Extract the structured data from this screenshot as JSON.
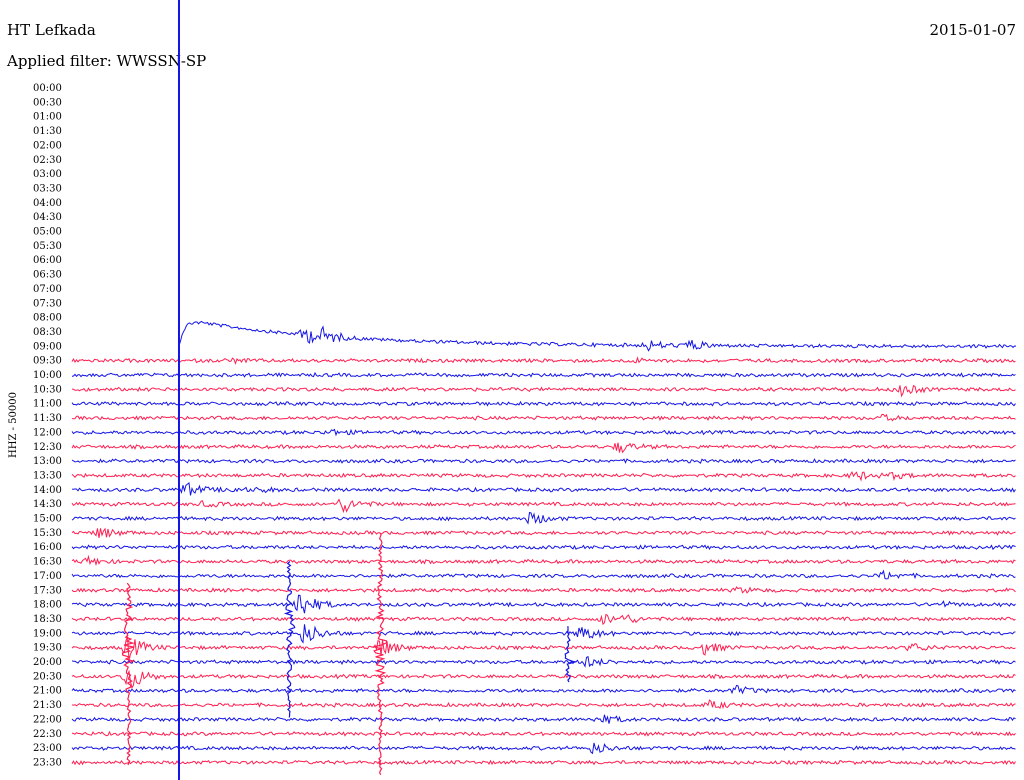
{
  "header": {
    "station": "HT Lefkada",
    "filter": "Applied filter: WWSSN-SP",
    "date": "2015-01-07"
  },
  "chart_data": {
    "type": "line",
    "ylabel": "HHZ - 50000",
    "grid": false,
    "rows": [
      "00:00",
      "00:30",
      "01:00",
      "01:30",
      "02:00",
      "02:30",
      "03:00",
      "03:30",
      "04:00",
      "04:30",
      "05:00",
      "05:30",
      "06:00",
      "06:30",
      "07:00",
      "07:30",
      "08:00",
      "08:30",
      "09:00",
      "09:30",
      "10:00",
      "10:30",
      "11:00",
      "11:30",
      "12:00",
      "12:30",
      "13:00",
      "13:30",
      "14:00",
      "14:30",
      "15:00",
      "15:30",
      "16:00",
      "16:30",
      "17:00",
      "17:30",
      "18:00",
      "18:30",
      "19:00",
      "19:30",
      "20:00",
      "20:30",
      "21:00",
      "21:30",
      "22:00",
      "22:30",
      "23:00",
      "23:30"
    ],
    "data_start_row": 18,
    "colors": {
      "even": "#ff1e50",
      "odd": "#1414e6"
    },
    "x_range_minutes": [
      0,
      30
    ],
    "marker_minute": 3.4,
    "events": [
      {
        "row": 18,
        "minute": 7.4,
        "amp": 1.2
      },
      {
        "row": 18,
        "minute": 8.0,
        "amp": 0.8
      },
      {
        "row": 18,
        "minute": 18.3,
        "amp": 0.6
      },
      {
        "row": 18,
        "minute": 19.6,
        "amp": 0.7
      },
      {
        "row": 19,
        "minute": 5.0,
        "amp": 0.25
      },
      {
        "row": 19,
        "minute": 17.9,
        "amp": 0.2
      },
      {
        "row": 21,
        "minute": 26.3,
        "amp": 0.9
      },
      {
        "row": 23,
        "minute": 25.7,
        "amp": 0.35
      },
      {
        "row": 24,
        "minute": 8.2,
        "amp": 0.35
      },
      {
        "row": 25,
        "minute": 17.4,
        "amp": 0.7
      },
      {
        "row": 27,
        "minute": 24.9,
        "amp": 0.6
      },
      {
        "row": 27,
        "minute": 26.1,
        "amp": 0.35
      },
      {
        "row": 28,
        "minute": 3.6,
        "amp": 0.9
      },
      {
        "row": 28,
        "minute": 5.0,
        "amp": 0.3
      },
      {
        "row": 28,
        "minute": 6.0,
        "amp": 0.2
      },
      {
        "row": 29,
        "minute": 8.6,
        "amp": 1.0
      },
      {
        "row": 29,
        "minute": 4.2,
        "amp": 0.3
      },
      {
        "row": 30,
        "minute": 14.6,
        "amp": 0.8
      },
      {
        "row": 31,
        "minute": 0.9,
        "amp": 0.7
      },
      {
        "row": 33,
        "minute": 0.5,
        "amp": 0.5
      },
      {
        "row": 34,
        "minute": 25.8,
        "amp": 0.5
      },
      {
        "row": 35,
        "minute": 21.2,
        "amp": 0.3
      },
      {
        "row": 36,
        "minute": 27.6,
        "amp": 0.3
      },
      {
        "row": 36,
        "minute": 7.2,
        "amp": 2.0
      },
      {
        "row": 37,
        "minute": 16.9,
        "amp": 0.6
      },
      {
        "row": 37,
        "minute": 17.6,
        "amp": 0.4
      },
      {
        "row": 38,
        "minute": 7.4,
        "amp": 1.4
      },
      {
        "row": 38,
        "minute": 16.2,
        "amp": 1.0
      },
      {
        "row": 39,
        "minute": 9.8,
        "amp": 1.2
      },
      {
        "row": 39,
        "minute": 20.1,
        "amp": 0.8
      },
      {
        "row": 39,
        "minute": 26.7,
        "amp": 0.5
      },
      {
        "row": 39,
        "minute": 1.8,
        "amp": 1.5
      },
      {
        "row": 40,
        "minute": 16.3,
        "amp": 0.7
      },
      {
        "row": 41,
        "minute": 1.8,
        "amp": 1.8
      },
      {
        "row": 42,
        "minute": 21.1,
        "amp": 0.5
      },
      {
        "row": 43,
        "minute": 20.3,
        "amp": 0.5
      },
      {
        "row": 44,
        "minute": 16.8,
        "amp": 0.6
      },
      {
        "row": 46,
        "minute": 16.6,
        "amp": 0.7
      }
    ],
    "spikes": [
      {
        "row": 39,
        "minute": 1.8,
        "top_row": 34.5,
        "bottom_row": 47.3,
        "color": "#ff1e50"
      },
      {
        "row": 38,
        "minute": 6.9,
        "top_row": 33.0,
        "bottom_row": 44.0,
        "color": "#1414e6"
      },
      {
        "row": 39,
        "minute": 9.8,
        "top_row": 31.0,
        "bottom_row": 48.0,
        "color": "#ff1e50"
      },
      {
        "row": 40,
        "minute": 15.8,
        "top_row": 37.5,
        "bottom_row": 41.5,
        "color": "#1414e6"
      }
    ]
  }
}
